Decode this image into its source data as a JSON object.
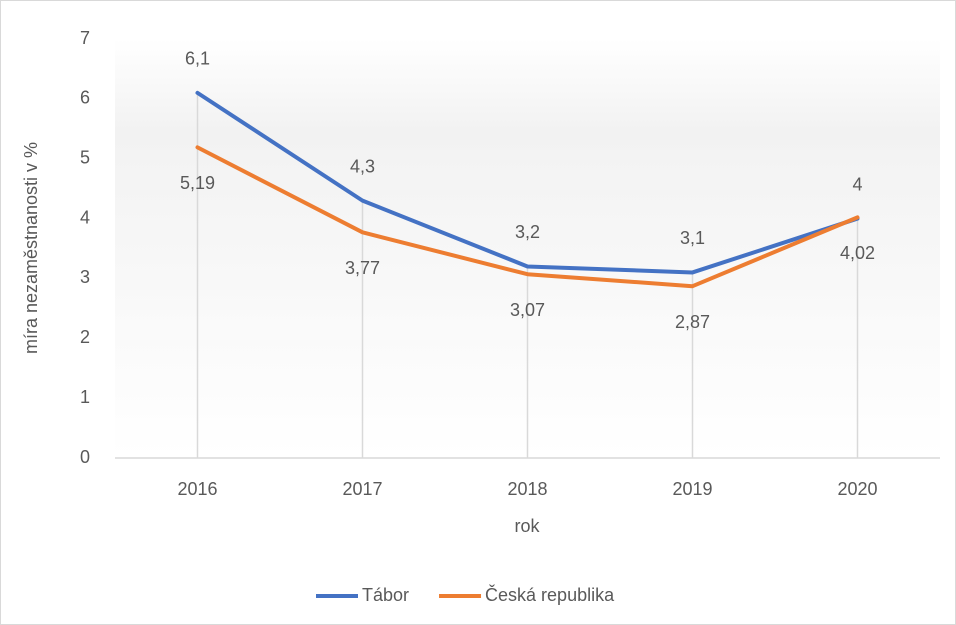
{
  "chart_data": {
    "type": "line",
    "x_label": "rok",
    "y_label": "míra nezaměstnanosti v %",
    "categories": [
      "2016",
      "2017",
      "2018",
      "2019",
      "2020"
    ],
    "series": [
      {
        "name": "Tábor",
        "color": "#4472c4",
        "values": [
          6.1,
          4.3,
          3.2,
          3.1,
          4
        ],
        "value_labels": [
          "6,1",
          "4,3",
          "3,2",
          "3,1",
          "4"
        ]
      },
      {
        "name": "Česká republika",
        "color": "#ed7d31",
        "values": [
          5.19,
          3.77,
          3.07,
          2.87,
          4.02
        ],
        "value_labels": [
          "5,19",
          "3,77",
          "3,07",
          "2,87",
          "4,02"
        ]
      }
    ],
    "ylim": [
      0,
      7
    ],
    "yticks": [
      0,
      1,
      2,
      3,
      4,
      5,
      6,
      7
    ],
    "legend": "bottom"
  }
}
